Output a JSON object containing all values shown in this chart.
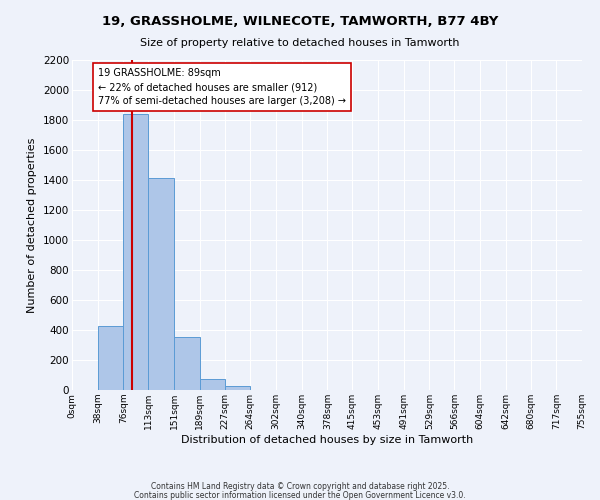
{
  "title1": "19, GRASSHOLME, WILNECOTE, TAMWORTH, B77 4BY",
  "title2": "Size of property relative to detached houses in Tamworth",
  "xlabel": "Distribution of detached houses by size in Tamworth",
  "ylabel": "Number of detached properties",
  "bin_edges": [
    0,
    38,
    76,
    113,
    151,
    189,
    227,
    264,
    302,
    340,
    378,
    415,
    453,
    491,
    529,
    566,
    604,
    642,
    680,
    717,
    755
  ],
  "bin_labels": [
    "0sqm",
    "38sqm",
    "76sqm",
    "113sqm",
    "151sqm",
    "189sqm",
    "227sqm",
    "264sqm",
    "302sqm",
    "340sqm",
    "378sqm",
    "415sqm",
    "453sqm",
    "491sqm",
    "529sqm",
    "566sqm",
    "604sqm",
    "642sqm",
    "680sqm",
    "717sqm",
    "755sqm"
  ],
  "counts": [
    0,
    430,
    1840,
    1415,
    355,
    75,
    25,
    0,
    0,
    0,
    0,
    0,
    0,
    0,
    0,
    0,
    0,
    0,
    0,
    0
  ],
  "bar_color": "#aec6e8",
  "bar_edge_color": "#5b9bd5",
  "property_line_x": 89,
  "property_line_color": "#cc0000",
  "annotation_line1": "19 GRASSHOLME: 89sqm",
  "annotation_line2": "← 22% of detached houses are smaller (912)",
  "annotation_line3": "77% of semi-detached houses are larger (3,208) →",
  "annotation_box_color": "#ffffff",
  "annotation_box_edge": "#cc0000",
  "ylim": [
    0,
    2200
  ],
  "yticks": [
    0,
    200,
    400,
    600,
    800,
    1000,
    1200,
    1400,
    1600,
    1800,
    2000,
    2200
  ],
  "background_color": "#eef2fa",
  "grid_color": "#ffffff",
  "footer1": "Contains HM Land Registry data © Crown copyright and database right 2025.",
  "footer2": "Contains public sector information licensed under the Open Government Licence v3.0."
}
